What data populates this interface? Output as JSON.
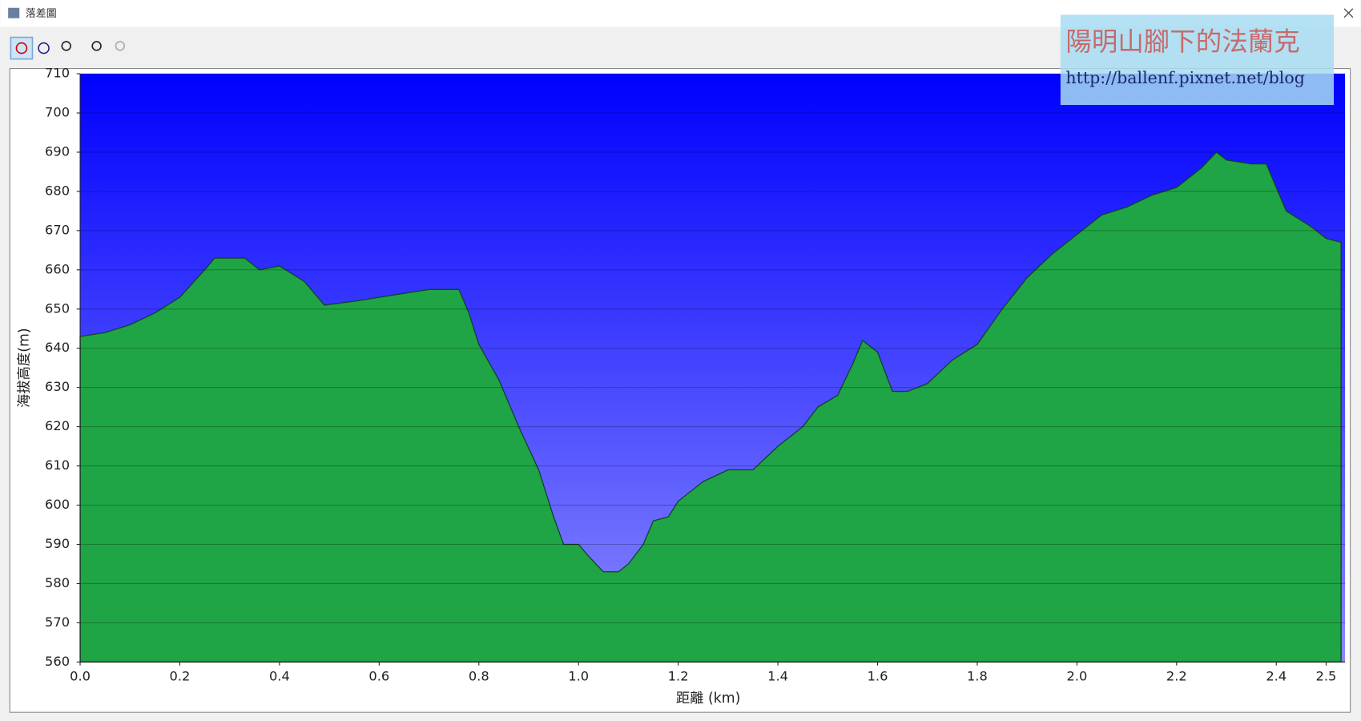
{
  "window_title": "落差圖",
  "watermark": {
    "name": "陽明山腳下的法蘭克",
    "url": "http://ballenf.pixnet.net/blog"
  },
  "chart_data": {
    "type": "area",
    "x_label": "距離 (km)",
    "y_label": "海拔高度(m)",
    "x": [
      0,
      0.05,
      0.1,
      0.15,
      0.2,
      0.25,
      0.27,
      0.3,
      0.33,
      0.36,
      0.4,
      0.45,
      0.49,
      0.55,
      0.6,
      0.65,
      0.7,
      0.76,
      0.78,
      0.8,
      0.84,
      0.88,
      0.92,
      0.95,
      0.97,
      1.0,
      1.02,
      1.05,
      1.08,
      1.1,
      1.13,
      1.15,
      1.18,
      1.2,
      1.25,
      1.3,
      1.35,
      1.4,
      1.45,
      1.48,
      1.52,
      1.55,
      1.57,
      1.6,
      1.63,
      1.66,
      1.7,
      1.75,
      1.8,
      1.85,
      1.9,
      1.95,
      2.0,
      2.05,
      2.1,
      2.15,
      2.2,
      2.25,
      2.28,
      2.3,
      2.35,
      2.38,
      2.42,
      2.47,
      2.5,
      2.53
    ],
    "values": [
      643,
      644,
      646,
      649,
      653,
      660,
      663,
      663,
      663,
      660,
      661,
      657,
      651,
      652,
      653,
      654,
      655,
      655,
      649,
      641,
      632,
      620,
      609,
      597,
      590,
      590,
      587,
      583,
      583,
      585,
      590,
      596,
      597,
      601,
      606,
      609,
      609,
      615,
      620,
      625,
      628,
      636,
      642,
      639,
      629,
      629,
      631,
      637,
      641,
      650,
      658,
      664,
      669,
      674,
      676,
      679,
      681,
      686,
      690,
      688,
      687,
      687,
      675,
      671,
      668,
      667
    ],
    "color": "#1fa545",
    "sky_top": "#0000ff",
    "sky_bottom": "#8a8aff",
    "xlim": [
      0,
      2.538
    ],
    "ylim": [
      560,
      710
    ],
    "xticks": [
      {
        "value": 0,
        "label": "0.0"
      },
      0.2,
      0.4,
      0.6,
      0.8,
      {
        "value": 1,
        "label": "1.0"
      },
      1.2,
      1.4,
      1.6,
      1.8,
      {
        "value": 2,
        "label": "2.0"
      },
      2.2,
      2.4,
      2.5
    ],
    "yticks": [
      560,
      570,
      580,
      590,
      600,
      610,
      620,
      630,
      640,
      650,
      660,
      670,
      680,
      690,
      700,
      710
    ],
    "grid": true
  }
}
